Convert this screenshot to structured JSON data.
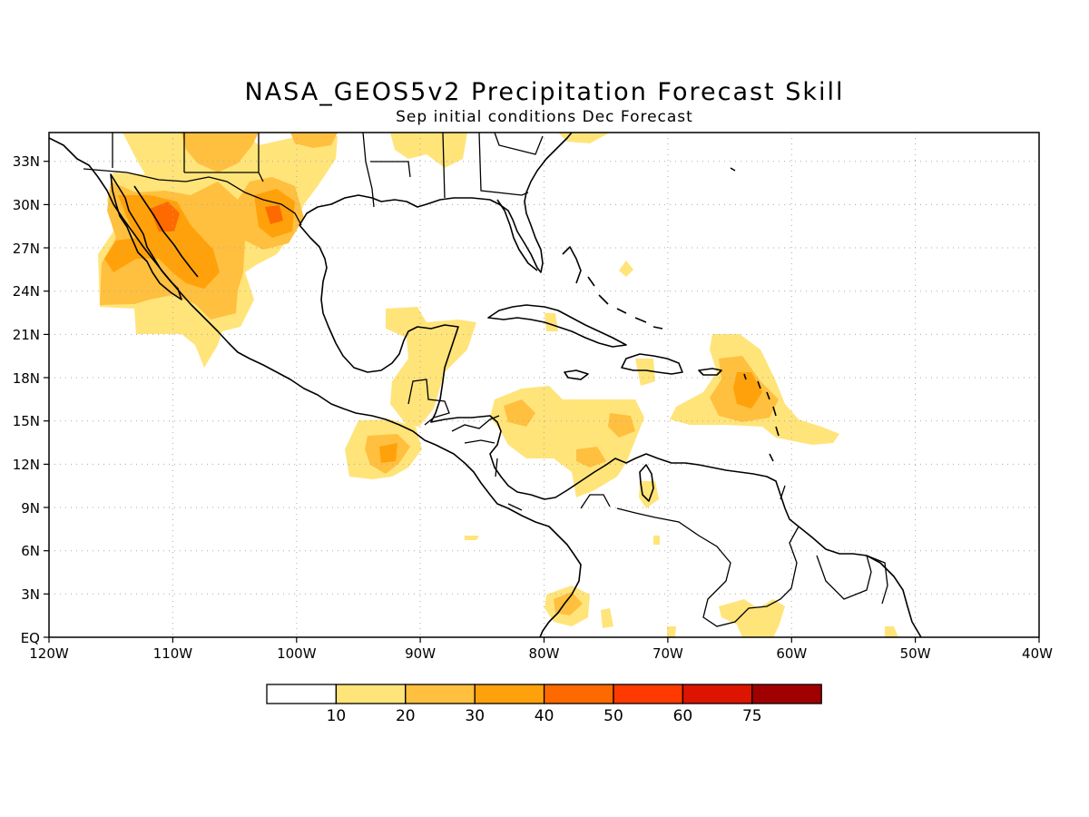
{
  "title": "NASA_GEOS5v2 Precipitation Forecast Skill",
  "subtitle": "Sep initial conditions  Dec Forecast",
  "map": {
    "lon_range": [
      -120,
      -40
    ],
    "lat_range": [
      0,
      35
    ],
    "lon_ticks": [
      "120W",
      "110W",
      "100W",
      "90W",
      "80W",
      "70W",
      "60W",
      "50W",
      "40W"
    ],
    "lat_ticks": [
      "EQ",
      "3N",
      "6N",
      "9N",
      "12N",
      "15N",
      "18N",
      "21N",
      "24N",
      "27N",
      "30N",
      "33N"
    ],
    "grid": "dotted"
  },
  "colorbar": {
    "labels": [
      "10",
      "20",
      "30",
      "40",
      "50",
      "60",
      "75"
    ],
    "colors": [
      "#ffffff",
      "#ffe47a",
      "#ffbf3f",
      "#ffa10a",
      "#ff6a00",
      "#ff3a00",
      "#dd1400",
      "#a00000"
    ]
  }
}
